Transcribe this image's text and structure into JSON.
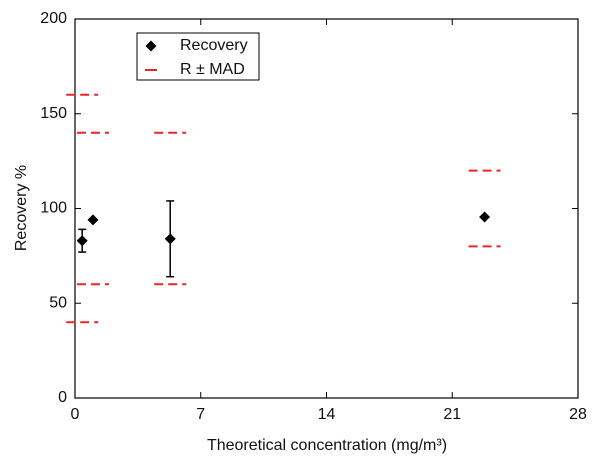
{
  "chart_data": {
    "type": "scatter",
    "x_label": "Theoretical concentration (mg/m³)",
    "y_label": "Recovery %",
    "xlim": [
      0,
      28
    ],
    "ylim": [
      0,
      200
    ],
    "xticks": [
      0,
      7,
      14,
      21,
      28
    ],
    "yticks": [
      0,
      50,
      100,
      150,
      200
    ],
    "legend": "upper left",
    "series": [
      {
        "name": "Recovery",
        "color": "#000000",
        "x": [
          0.4,
          1.0,
          5.3,
          22.8
        ],
        "values": [
          83,
          94,
          84,
          95.5
        ],
        "errors": [
          6,
          null,
          20,
          null
        ]
      },
      {
        "name": "R ± MAD",
        "color": "#e8262b",
        "x": [
          0.4,
          1.0,
          5.3,
          22.8
        ],
        "upper": [
          160,
          140,
          140,
          120
        ],
        "lower": [
          40,
          60,
          60,
          80
        ]
      }
    ]
  }
}
